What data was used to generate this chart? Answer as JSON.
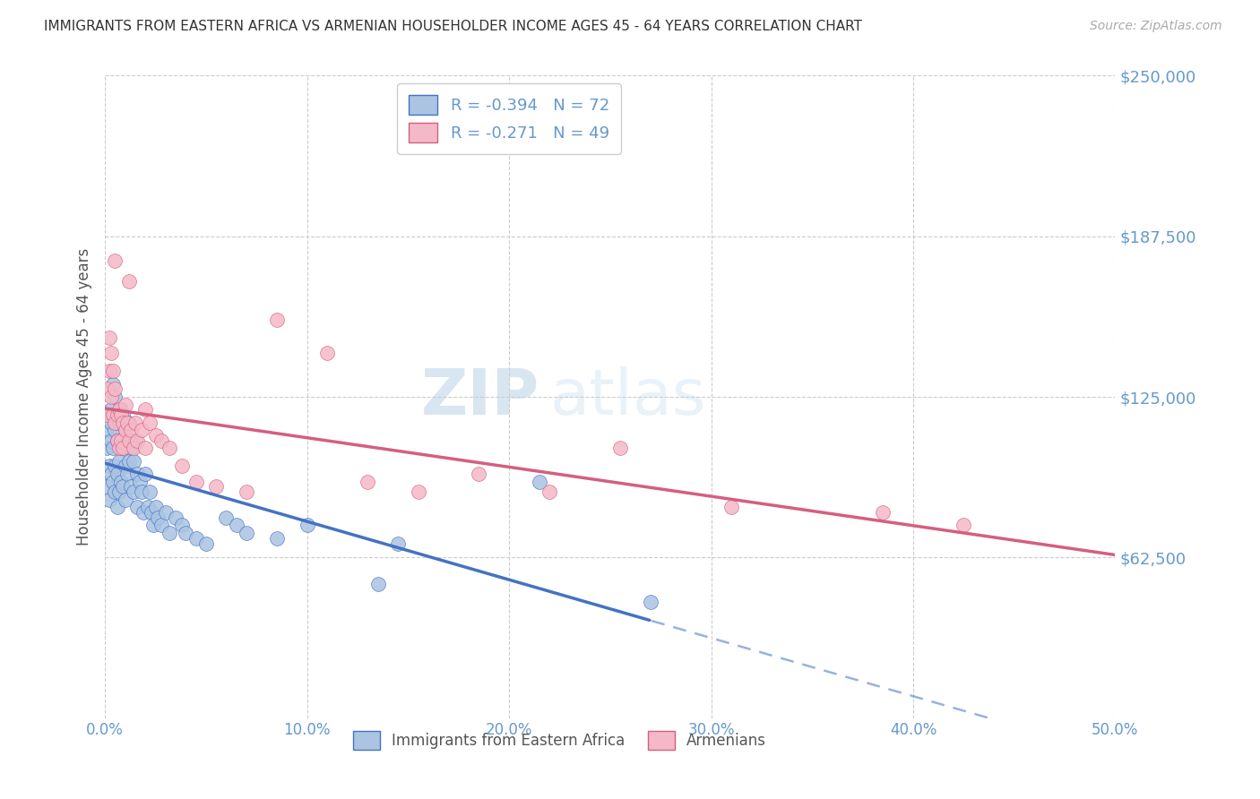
{
  "title": "IMMIGRANTS FROM EASTERN AFRICA VS ARMENIAN HOUSEHOLDER INCOME AGES 45 - 64 YEARS CORRELATION CHART",
  "source": "Source: ZipAtlas.com",
  "ylabel": "Householder Income Ages 45 - 64 years",
  "ytick_labels": [
    "",
    "$62,500",
    "$125,000",
    "$187,500",
    "$250,000"
  ],
  "ytick_values": [
    0,
    62500,
    125000,
    187500,
    250000
  ],
  "xlim": [
    0.0,
    0.5
  ],
  "ylim": [
    0,
    250000
  ],
  "blue_R": -0.394,
  "blue_N": 72,
  "pink_R": -0.271,
  "pink_N": 49,
  "blue_color": "#aac4e2",
  "blue_line_color": "#4472c4",
  "pink_color": "#f5b8c8",
  "pink_line_color": "#d45f80",
  "watermark_zip": "ZIP",
  "watermark_atlas": "atlas",
  "legend_label_blue": "Immigrants from Eastern Africa",
  "legend_label_pink": "Armenians",
  "background_color": "#ffffff",
  "grid_color": "#cccccc",
  "title_color": "#333333",
  "axis_color": "#6699cc",
  "blue_x": [
    0.001,
    0.001,
    0.002,
    0.002,
    0.002,
    0.002,
    0.003,
    0.003,
    0.003,
    0.003,
    0.004,
    0.004,
    0.004,
    0.004,
    0.005,
    0.005,
    0.005,
    0.005,
    0.006,
    0.006,
    0.006,
    0.006,
    0.007,
    0.007,
    0.007,
    0.008,
    0.008,
    0.008,
    0.009,
    0.009,
    0.009,
    0.01,
    0.01,
    0.01,
    0.011,
    0.011,
    0.012,
    0.012,
    0.013,
    0.013,
    0.014,
    0.014,
    0.015,
    0.016,
    0.016,
    0.017,
    0.018,
    0.019,
    0.02,
    0.021,
    0.022,
    0.023,
    0.024,
    0.025,
    0.026,
    0.028,
    0.03,
    0.032,
    0.035,
    0.038,
    0.04,
    0.045,
    0.05,
    0.06,
    0.065,
    0.07,
    0.085,
    0.1,
    0.135,
    0.145,
    0.215,
    0.27
  ],
  "blue_y": [
    105000,
    90000,
    112000,
    98000,
    118000,
    85000,
    120000,
    108000,
    95000,
    115000,
    130000,
    118000,
    105000,
    92000,
    125000,
    112000,
    98000,
    88000,
    118000,
    108000,
    95000,
    82000,
    115000,
    100000,
    88000,
    120000,
    105000,
    92000,
    118000,
    105000,
    90000,
    112000,
    98000,
    85000,
    108000,
    95000,
    115000,
    100000,
    105000,
    90000,
    100000,
    88000,
    108000,
    95000,
    82000,
    92000,
    88000,
    80000,
    95000,
    82000,
    88000,
    80000,
    75000,
    82000,
    78000,
    75000,
    80000,
    72000,
    78000,
    75000,
    72000,
    70000,
    68000,
    78000,
    75000,
    72000,
    70000,
    75000,
    52000,
    68000,
    92000,
    45000
  ],
  "pink_x": [
    0.001,
    0.001,
    0.002,
    0.002,
    0.003,
    0.003,
    0.004,
    0.004,
    0.005,
    0.005,
    0.006,
    0.006,
    0.007,
    0.007,
    0.008,
    0.008,
    0.009,
    0.009,
    0.01,
    0.01,
    0.011,
    0.012,
    0.013,
    0.014,
    0.015,
    0.016,
    0.018,
    0.02,
    0.022,
    0.025,
    0.028,
    0.032,
    0.038,
    0.045,
    0.055,
    0.07,
    0.085,
    0.11,
    0.13,
    0.155,
    0.185,
    0.22,
    0.255,
    0.31,
    0.385,
    0.425,
    0.005,
    0.012,
    0.02
  ],
  "pink_y": [
    128000,
    118000,
    148000,
    135000,
    142000,
    125000,
    135000,
    118000,
    128000,
    115000,
    118000,
    108000,
    120000,
    105000,
    118000,
    108000,
    115000,
    105000,
    122000,
    112000,
    115000,
    108000,
    112000,
    105000,
    115000,
    108000,
    112000,
    105000,
    115000,
    110000,
    108000,
    105000,
    98000,
    92000,
    90000,
    88000,
    155000,
    142000,
    92000,
    88000,
    95000,
    88000,
    105000,
    82000,
    80000,
    75000,
    178000,
    170000,
    120000
  ]
}
